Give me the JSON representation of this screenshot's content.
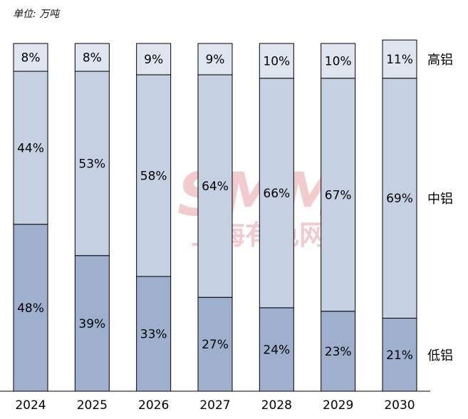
{
  "unit_label": "单位: 万吨",
  "watermark": {
    "brand": "SMM",
    "subtitle": "上海有色网"
  },
  "chart_data": {
    "type": "bar",
    "stacked": true,
    "normalized": true,
    "categories": [
      "2024",
      "2025",
      "2026",
      "2027",
      "2028",
      "2029",
      "2030"
    ],
    "series": [
      {
        "name": "低铝",
        "values": [
          48,
          39,
          33,
          27,
          24,
          23,
          21
        ],
        "labels": [
          "48%",
          "39%",
          "33%",
          "27%",
          "24%",
          "23%",
          "21%"
        ],
        "color": "#9eb0cd"
      },
      {
        "name": "中铝",
        "values": [
          44,
          53,
          58,
          64,
          66,
          67,
          69
        ],
        "labels": [
          "44%",
          "53%",
          "58%",
          "64%",
          "66%",
          "67%",
          "69%"
        ],
        "color": "#c5d0e2"
      },
      {
        "name": "高铝",
        "values": [
          8,
          8,
          9,
          9,
          10,
          10,
          11
        ],
        "labels": [
          "8%",
          "8%",
          "9%",
          "9%",
          "10%",
          "10%",
          "11%"
        ],
        "color": "#dfe5ef"
      }
    ],
    "ylim": [
      0,
      100
    ],
    "grid": false,
    "legend_position": "right"
  }
}
